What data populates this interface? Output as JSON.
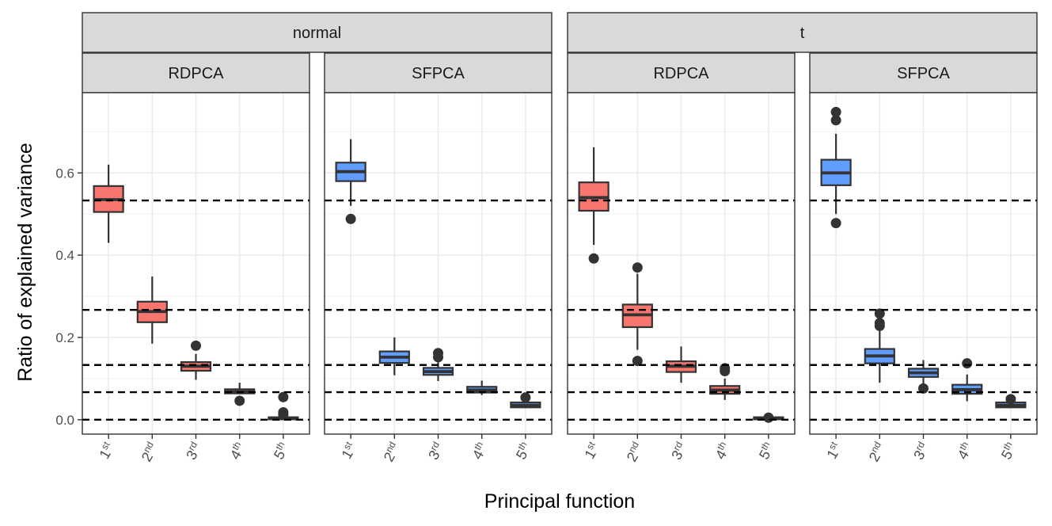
{
  "chart_data": {
    "type": "boxplot",
    "ylabel": "Ratio of explained variance",
    "xlabel": "Principal function",
    "ylim": [
      -0.035,
      0.795
    ],
    "yticks": [
      0.0,
      0.2,
      0.4,
      0.6
    ],
    "ytick_labels": [
      "0.0",
      "0.2",
      "0.4",
      "0.6"
    ],
    "grid": true,
    "categories": [
      {
        "base": "1",
        "sup": "st"
      },
      {
        "base": "2",
        "sup": "nd"
      },
      {
        "base": "3",
        "sup": "rd"
      },
      {
        "base": "4",
        "sup": "th"
      },
      {
        "base": "5",
        "sup": "th"
      }
    ],
    "reference_lines": [
      0.533,
      0.267,
      0.133,
      0.067,
      0.0
    ],
    "method_colors": {
      "RDPCA": "#F8766D",
      "SFPCA": "#619CFF"
    },
    "groups": [
      {
        "label": "normal",
        "panels": [
          {
            "method": "RDPCA",
            "boxes": [
              {
                "lower": 0.43,
                "q1": 0.505,
                "median": 0.535,
                "q3": 0.568,
                "upper": 0.62,
                "outliers": []
              },
              {
                "lower": 0.185,
                "q1": 0.237,
                "median": 0.263,
                "q3": 0.287,
                "upper": 0.348,
                "outliers": []
              },
              {
                "lower": 0.097,
                "q1": 0.119,
                "median": 0.13,
                "q3": 0.14,
                "upper": 0.16,
                "outliers": [
                  0.18
                ]
              },
              {
                "lower": 0.062,
                "q1": 0.064,
                "median": 0.068,
                "q3": 0.074,
                "upper": 0.09,
                "outliers": [
                  0.046
                ]
              },
              {
                "lower": 0.0,
                "q1": 0.001,
                "median": 0.003,
                "q3": 0.006,
                "upper": 0.008,
                "outliers": [
                  0.055,
                  0.018,
                  0.012
                ]
              }
            ]
          },
          {
            "method": "SFPCA",
            "boxes": [
              {
                "lower": 0.52,
                "q1": 0.58,
                "median": 0.603,
                "q3": 0.625,
                "upper": 0.682,
                "outliers": [
                  0.488
                ]
              },
              {
                "lower": 0.108,
                "q1": 0.138,
                "median": 0.152,
                "q3": 0.166,
                "upper": 0.2,
                "outliers": []
              },
              {
                "lower": 0.094,
                "q1": 0.109,
                "median": 0.117,
                "q3": 0.126,
                "upper": 0.14,
                "outliers": [
                  0.162,
                  0.152
                ]
              },
              {
                "lower": 0.06,
                "q1": 0.066,
                "median": 0.072,
                "q3": 0.08,
                "upper": 0.095,
                "outliers": []
              },
              {
                "lower": 0.028,
                "q1": 0.03,
                "median": 0.035,
                "q3": 0.042,
                "upper": 0.048,
                "outliers": [
                  0.054
                ]
              }
            ]
          }
        ]
      },
      {
        "label": "t",
        "panels": [
          {
            "method": "RDPCA",
            "boxes": [
              {
                "lower": 0.425,
                "q1": 0.508,
                "median": 0.54,
                "q3": 0.577,
                "upper": 0.662,
                "outliers": [
                  0.392
                ]
              },
              {
                "lower": 0.17,
                "q1": 0.225,
                "median": 0.255,
                "q3": 0.28,
                "upper": 0.355,
                "outliers": [
                  0.37,
                  0.143
                ]
              },
              {
                "lower": 0.09,
                "q1": 0.116,
                "median": 0.13,
                "q3": 0.142,
                "upper": 0.178,
                "outliers": []
              },
              {
                "lower": 0.048,
                "q1": 0.063,
                "median": 0.072,
                "q3": 0.082,
                "upper": 0.1,
                "outliers": [
                  0.125,
                  0.118
                ]
              },
              {
                "lower": 0.0,
                "q1": 0.001,
                "median": 0.003,
                "q3": 0.006,
                "upper": 0.008,
                "outliers": [
                  0.005
                ]
              }
            ]
          },
          {
            "method": "SFPCA",
            "boxes": [
              {
                "lower": 0.5,
                "q1": 0.57,
                "median": 0.6,
                "q3": 0.632,
                "upper": 0.695,
                "outliers": [
                  0.748,
                  0.728,
                  0.478
                ]
              },
              {
                "lower": 0.09,
                "q1": 0.137,
                "median": 0.155,
                "q3": 0.172,
                "upper": 0.22,
                "outliers": [
                  0.258,
                  0.235,
                  0.228
                ]
              },
              {
                "lower": 0.085,
                "q1": 0.104,
                "median": 0.114,
                "q3": 0.124,
                "upper": 0.145,
                "outliers": [
                  0.076
                ]
              },
              {
                "lower": 0.045,
                "q1": 0.063,
                "median": 0.073,
                "q3": 0.085,
                "upper": 0.11,
                "outliers": [
                  0.137
                ]
              },
              {
                "lower": 0.028,
                "q1": 0.03,
                "median": 0.035,
                "q3": 0.042,
                "upper": 0.048,
                "outliers": [
                  0.05
                ]
              }
            ]
          }
        ]
      }
    ]
  }
}
